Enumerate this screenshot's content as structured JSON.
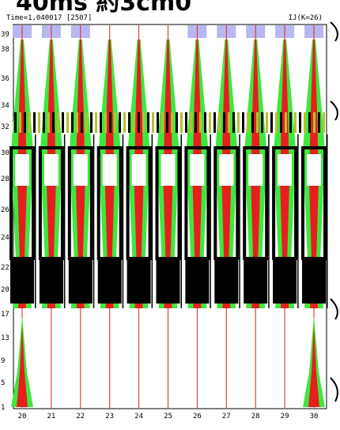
{
  "header": {
    "title": "40ms 約3cm0",
    "time": "Time=1,040017 [2507]",
    "slice": "IJ(K=26)"
  },
  "y_labels": [
    "39",
    "38",
    "36",
    "34",
    "32",
    "30",
    "28",
    "26",
    "24",
    "22",
    "20",
    "17",
    "13",
    "9",
    "5",
    "1"
  ],
  "x_labels": [
    "20",
    "21",
    "22",
    "23",
    "24",
    "25",
    "26",
    "27",
    "28",
    "29",
    "30"
  ]
}
